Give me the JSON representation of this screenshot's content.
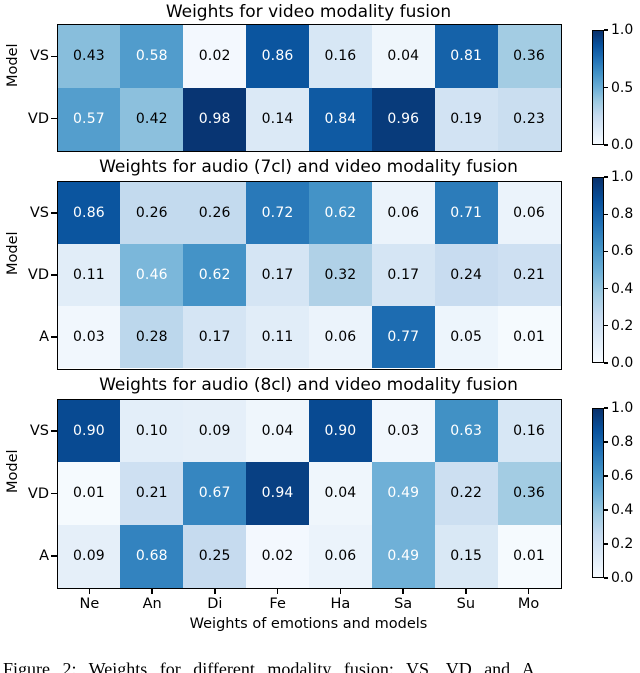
{
  "figure": {
    "xlabel": "Weights of emotions and models",
    "ylabel": "Model",
    "caption": "Figure 2: Weights for different modality fusion: VS, VD and A"
  },
  "chart_data": [
    {
      "type": "heatmap",
      "title": "Weights for video modality fusion",
      "ylabel": "Model",
      "categories": [
        "Ne",
        "An",
        "Di",
        "Fe",
        "Ha",
        "Sa",
        "Su",
        "Mo"
      ],
      "rows": [
        "VS",
        "VD"
      ],
      "values": [
        [
          0.43,
          0.58,
          0.02,
          0.86,
          0.16,
          0.04,
          0.81,
          0.36
        ],
        [
          0.57,
          0.42,
          0.98,
          0.14,
          0.84,
          0.96,
          0.19,
          0.23
        ]
      ],
      "vmin": 0.0,
      "vmax": 1.0,
      "colorbar_ticks": [
        "1.0",
        "0.5",
        "0.0"
      ],
      "legend_position": "right-colorbar"
    },
    {
      "type": "heatmap",
      "title": "Weights for audio (7cl) and video modality fusion",
      "ylabel": "Model",
      "categories": [
        "Ne",
        "An",
        "Di",
        "Fe",
        "Ha",
        "Sa",
        "Su",
        "Mo"
      ],
      "rows": [
        "VS",
        "VD",
        "A"
      ],
      "values": [
        [
          0.86,
          0.26,
          0.26,
          0.72,
          0.62,
          0.06,
          0.71,
          0.06
        ],
        [
          0.11,
          0.46,
          0.62,
          0.17,
          0.32,
          0.17,
          0.24,
          0.21
        ],
        [
          0.03,
          0.28,
          0.17,
          0.11,
          0.06,
          0.77,
          0.05,
          0.01
        ]
      ],
      "vmin": 0.0,
      "vmax": 1.0,
      "colorbar_ticks": [
        "1.0",
        "0.8",
        "0.6",
        "0.4",
        "0.2",
        "0.0"
      ],
      "legend_position": "right-colorbar"
    },
    {
      "type": "heatmap",
      "title": "Weights for audio (8cl) and video modality fusion",
      "ylabel": "Model",
      "categories": [
        "Ne",
        "An",
        "Di",
        "Fe",
        "Ha",
        "Sa",
        "Su",
        "Mo"
      ],
      "rows": [
        "VS",
        "VD",
        "A"
      ],
      "values": [
        [
          0.9,
          0.1,
          0.09,
          0.04,
          0.9,
          0.03,
          0.63,
          0.16
        ],
        [
          0.01,
          0.21,
          0.67,
          0.94,
          0.04,
          0.49,
          0.22,
          0.36
        ],
        [
          0.09,
          0.68,
          0.25,
          0.02,
          0.06,
          0.49,
          0.15,
          0.01
        ]
      ],
      "vmin": 0.0,
      "vmax": 1.0,
      "colorbar_ticks": [
        "1.0",
        "0.8",
        "0.6",
        "0.4",
        "0.2",
        "0.0"
      ],
      "legend_position": "right-colorbar"
    }
  ],
  "colors": {
    "colormap": "Blues",
    "colormap_anchors": [
      "#f7fbff",
      "#deebf7",
      "#c6dbef",
      "#9ecae1",
      "#6baed6",
      "#4292c6",
      "#2171b5",
      "#08519c",
      "#08306b"
    ],
    "cell_text_dark": "#000000",
    "cell_text_light": "#ffffff",
    "axes_edge": "#000000",
    "background": "#ffffff"
  },
  "text_white_threshold": 0.45
}
